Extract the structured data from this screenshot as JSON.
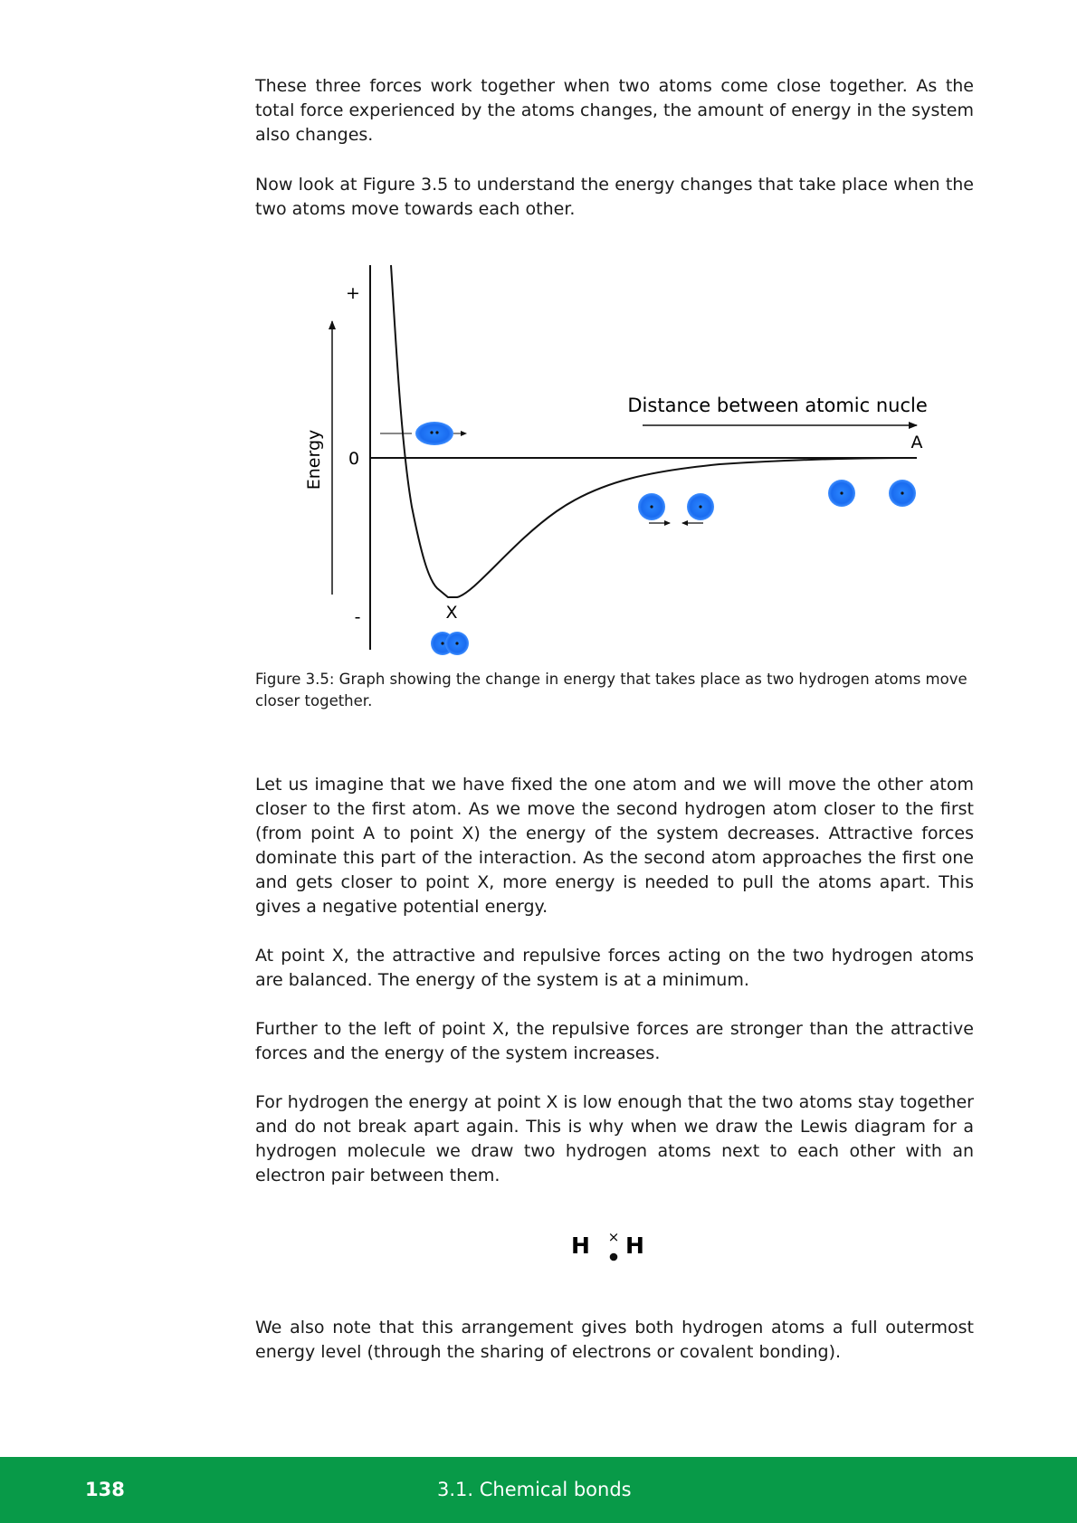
{
  "paragraphs": {
    "p1": "These three forces work together when two atoms come close together.  As the total force experienced by the atoms changes, the amount of energy in the system also changes.",
    "p2": "Now look at Figure 3.5 to understand the energy changes that take place when the two atoms move towards each other.",
    "p3": "Let us imagine that we have fixed the one atom and we will move the other atom closer to the first atom. As we move the second hydrogen atom closer to the first (from point A to point X) the energy of the system decreases. Attractive forces dominate this part of the interaction. As the second atom approaches the first one and gets closer to point X, more energy is needed to pull the atoms apart. This gives a negative potential energy.",
    "p4": "At point X, the attractive and repulsive forces acting on the two hydrogen atoms are balanced. The energy of the system is at a minimum.",
    "p5": "Further to the left of point X, the repulsive forces are stronger than the attractive forces and the energy of the system increases.",
    "p6": "For hydrogen the energy at point X is low enough that the two atoms stay together and do not break apart again.  This is why when we draw the Lewis diagram for a hydrogen molecule we draw two hydrogen atoms next to each other with an electron pair between them.",
    "p7": "We also note that this arrangement gives both hydrogen atoms a full outermost energy level (through the sharing of electrons or covalent bonding)."
  },
  "figure": {
    "y_axis_label": "Energy",
    "plus_label": "+",
    "zero_label": "0",
    "minus_label": "-",
    "x_axis_label": "Distance between atomic nuclei",
    "point_a": "A",
    "point_x": "X",
    "caption": "Figure 3.5:  Graph showing the change in energy that takes place as two hydrogen atoms move closer together.",
    "atom_color": "#1a6cf0"
  },
  "lewis": {
    "left_atom": "H",
    "right_atom": "H",
    "cross": "×"
  },
  "footer": {
    "page_number": "138",
    "section_title": "3.1.   Chemical bonds",
    "color": "#089a48"
  }
}
